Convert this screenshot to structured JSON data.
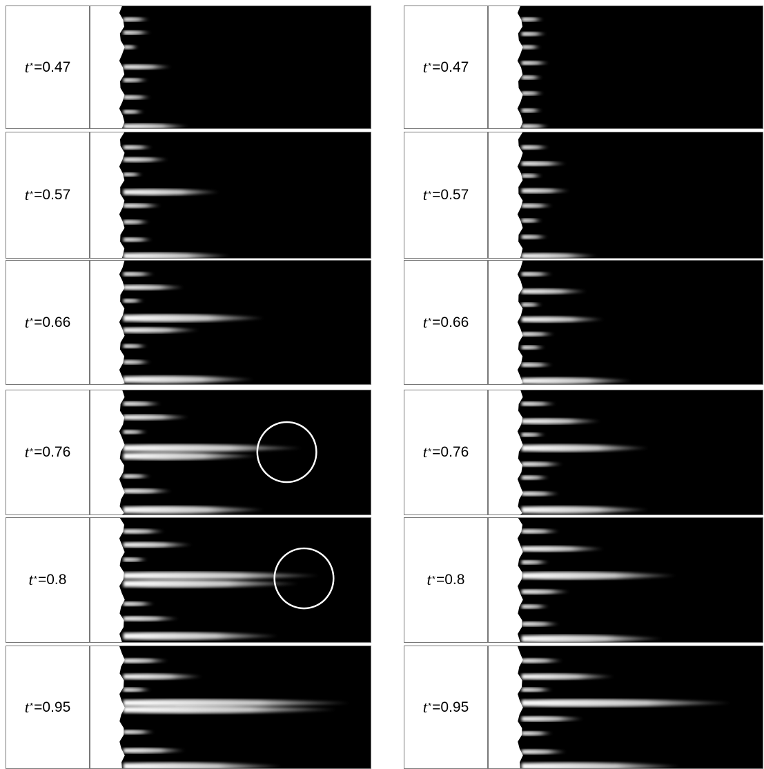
{
  "columns": [
    {
      "name": "left-column",
      "rows": [
        {
          "t_value": "0.47",
          "fingers": [
            [
              38,
              20
            ],
            [
              40,
              40
            ],
            [
              22,
              62
            ],
            [
              70,
              92
            ],
            [
              36,
              112
            ],
            [
              40,
              138
            ],
            [
              30,
              160
            ],
            [
              95,
              182
            ]
          ],
          "circle": null
        },
        {
          "t_value": "0.57",
          "fingers": [
            [
              42,
              22
            ],
            [
              65,
              40
            ],
            [
              28,
              62
            ],
            [
              140,
              88
            ],
            [
              55,
              108
            ],
            [
              38,
              132
            ],
            [
              42,
              158
            ],
            [
              155,
              182
            ]
          ],
          "circle": null
        },
        {
          "t_value": "0.66",
          "fingers": [
            [
              45,
              20
            ],
            [
              88,
              40
            ],
            [
              30,
              60
            ],
            [
              205,
              86
            ],
            [
              110,
              104
            ],
            [
              35,
              128
            ],
            [
              40,
              152
            ],
            [
              190,
              178
            ]
          ],
          "circle": null
        },
        {
          "t_value": "0.76",
          "fingers": [
            [
              55,
              20
            ],
            [
              95,
              40
            ],
            [
              35,
              62
            ],
            [
              260,
              86
            ],
            [
              195,
              98
            ],
            [
              40,
              128
            ],
            [
              70,
              150
            ],
            [
              205,
              178
            ]
          ],
          "circle": {
            "cy": 92
          }
        },
        {
          "t_value": "0.8",
          "fingers": [
            [
              60,
              20
            ],
            [
              100,
              40
            ],
            [
              35,
              62
            ],
            [
              285,
              86
            ],
            [
              255,
              98
            ],
            [
              45,
              128
            ],
            [
              80,
              150
            ],
            [
              225,
              176
            ]
          ],
          "circle": {
            "cy": 90
          }
        },
        {
          "t_value": "0.95",
          "fingers": [
            [
              65,
              22
            ],
            [
              115,
              46
            ],
            [
              40,
              66
            ],
            [
              330,
              86
            ],
            [
              310,
              96
            ],
            [
              45,
              130
            ],
            [
              90,
              158
            ],
            [
              230,
              182
            ]
          ],
          "circle": null
        }
      ]
    },
    {
      "name": "right-column",
      "rows": [
        {
          "t_value": "0.47",
          "fingers": [
            [
              32,
              20
            ],
            [
              36,
              42
            ],
            [
              28,
              62
            ],
            [
              40,
              86
            ],
            [
              30,
              108
            ],
            [
              32,
              132
            ],
            [
              30,
              158
            ],
            [
              40,
              182
            ]
          ],
          "circle": null
        },
        {
          "t_value": "0.57",
          "fingers": [
            [
              40,
              22
            ],
            [
              65,
              46
            ],
            [
              30,
              64
            ],
            [
              70,
              86
            ],
            [
              45,
              108
            ],
            [
              30,
              130
            ],
            [
              38,
              154
            ],
            [
              110,
              182
            ]
          ],
          "circle": null
        },
        {
          "t_value": "0.66",
          "fingers": [
            [
              45,
              20
            ],
            [
              95,
              46
            ],
            [
              30,
              66
            ],
            [
              120,
              88
            ],
            [
              48,
              110
            ],
            [
              34,
              130
            ],
            [
              45,
              156
            ],
            [
              160,
              180
            ]
          ],
          "circle": null
        },
        {
          "t_value": "0.76",
          "fingers": [
            [
              50,
              20
            ],
            [
              115,
              46
            ],
            [
              35,
              66
            ],
            [
              185,
              86
            ],
            [
              60,
              110
            ],
            [
              40,
              130
            ],
            [
              55,
              154
            ],
            [
              185,
              178
            ]
          ],
          "circle": null
        },
        {
          "t_value": "0.8",
          "fingers": [
            [
              55,
              20
            ],
            [
              120,
              46
            ],
            [
              40,
              66
            ],
            [
              225,
              86
            ],
            [
              70,
              110
            ],
            [
              40,
              132
            ],
            [
              55,
              158
            ],
            [
              205,
              180
            ]
          ],
          "circle": null
        },
        {
          "t_value": "0.95",
          "fingers": [
            [
              60,
              22
            ],
            [
              135,
              46
            ],
            [
              45,
              66
            ],
            [
              305,
              86
            ],
            [
              90,
              110
            ],
            [
              45,
              132
            ],
            [
              65,
              160
            ],
            [
              230,
              182
            ]
          ],
          "circle": null
        }
      ]
    }
  ],
  "t_symbol": "t",
  "t_superscript": "*",
  "t_equals": "=",
  "colors": {
    "fluid": "#000000",
    "front": "#ffffff",
    "annotation": "#ffffff"
  }
}
